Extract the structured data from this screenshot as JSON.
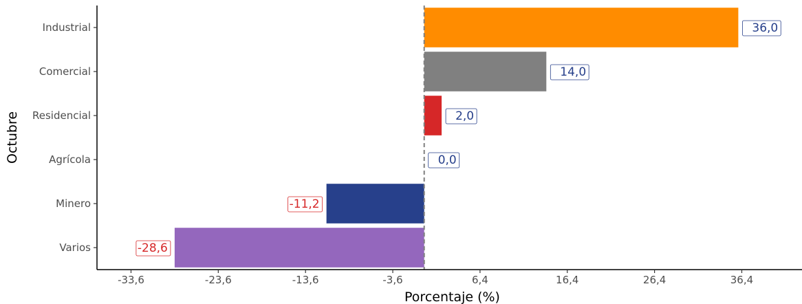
{
  "chart_data": {
    "type": "bar",
    "orientation": "horizontal",
    "xlabel": "Porcentaje (%)",
    "ylabel": "Octubre",
    "categories": [
      "Industrial",
      "Comercial",
      "Residencial",
      "Agrícola",
      "Minero",
      "Varios"
    ],
    "values": [
      36.0,
      14.0,
      2.0,
      0.0,
      -11.2,
      -28.6
    ],
    "value_labels": [
      "36,0",
      "14,0",
      "2,0",
      "0,0",
      "-11,2",
      "-28,6"
    ],
    "bar_colors": [
      "#FF8C00",
      "#808080",
      "#D62728",
      "#808080",
      "#27408B",
      "#9467BD"
    ],
    "positive_label_color": "#27408B",
    "negative_label_color": "#D62728",
    "x_ticks": [
      -33.6,
      -23.6,
      -13.6,
      -3.6,
      6.4,
      16.4,
      26.4,
      36.4
    ],
    "x_tick_labels": [
      "-33,6",
      "-23,6",
      "-13,6",
      "-3,6",
      "6,4",
      "16,4",
      "26,4",
      "36,4"
    ],
    "xlim": [
      -37.5,
      43.3
    ],
    "reference_line": 0,
    "grid": false,
    "legend": "none"
  }
}
